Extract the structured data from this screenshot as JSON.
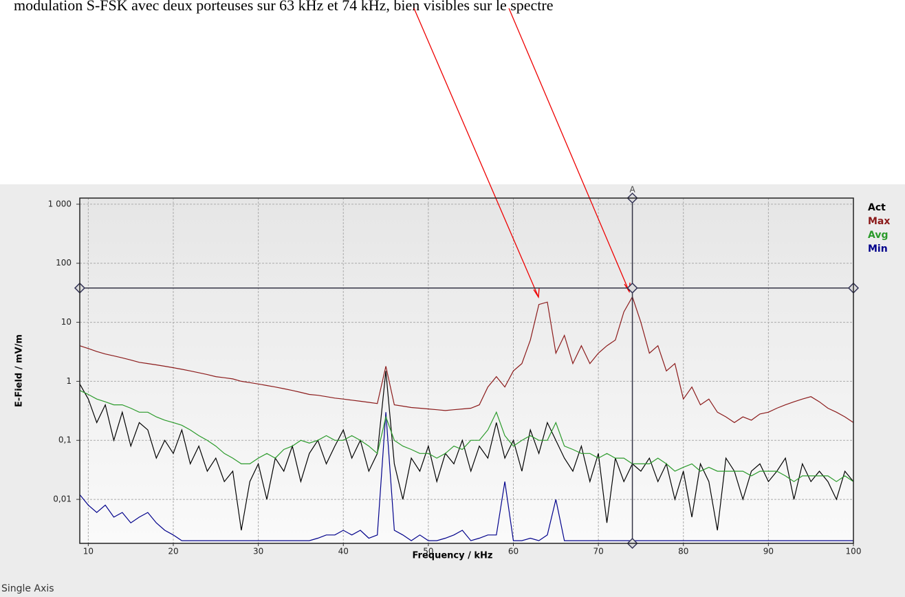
{
  "chart_data": {
    "type": "line",
    "annotation": "modulation S-FSK avec deux porteuses sur 63 kHz et 74 kHz, bien visibles sur le spectre",
    "xlabel": "Frequency / kHz",
    "ylabel": "E-Field / mV/m",
    "footer": "Single Axis",
    "log_y": true,
    "grid": true,
    "legend": "right",
    "xlim": [
      9,
      100
    ],
    "xticks": [
      10,
      20,
      30,
      40,
      50,
      60,
      70,
      80,
      90,
      100
    ],
    "ylim": [
      0.0018,
      1270
    ],
    "yticks": [
      {
        "value": 1000,
        "label": "1 000"
      },
      100,
      10,
      1,
      {
        "value": 0.1,
        "label": "0,1"
      },
      {
        "value": 0.01,
        "label": "0,01"
      }
    ],
    "cursor": {
      "label": "A",
      "x": 74,
      "y": 38
    },
    "x": [
      9,
      10,
      11,
      12,
      13,
      14,
      15,
      16,
      17,
      18,
      19,
      20,
      21,
      22,
      23,
      24,
      25,
      26,
      27,
      28,
      29,
      30,
      31,
      32,
      33,
      34,
      35,
      36,
      37,
      38,
      39,
      40,
      41,
      42,
      43,
      44,
      45,
      46,
      47,
      48,
      49,
      50,
      51,
      52,
      53,
      54,
      55,
      56,
      57,
      58,
      59,
      60,
      61,
      62,
      63,
      64,
      65,
      66,
      67,
      68,
      69,
      70,
      71,
      72,
      73,
      74,
      75,
      76,
      77,
      78,
      79,
      80,
      81,
      82,
      83,
      84,
      85,
      86,
      87,
      88,
      89,
      90,
      91,
      92,
      93,
      94,
      95,
      96,
      97,
      98,
      99,
      100
    ],
    "series": [
      {
        "name": "Act",
        "color": "#000000",
        "values": [
          0.9,
          0.5,
          0.2,
          0.4,
          0.1,
          0.3,
          0.08,
          0.2,
          0.15,
          0.05,
          0.1,
          0.06,
          0.15,
          0.04,
          0.08,
          0.03,
          0.05,
          0.02,
          0.03,
          0.003,
          0.02,
          0.04,
          0.01,
          0.05,
          0.03,
          0.08,
          0.02,
          0.06,
          0.1,
          0.04,
          0.08,
          0.15,
          0.05,
          0.1,
          0.03,
          0.06,
          1.5,
          0.04,
          0.01,
          0.05,
          0.03,
          0.08,
          0.02,
          0.06,
          0.04,
          0.1,
          0.03,
          0.08,
          0.05,
          0.2,
          0.05,
          0.1,
          0.03,
          0.15,
          0.06,
          0.2,
          0.1,
          0.05,
          0.03,
          0.08,
          0.02,
          0.06,
          0.004,
          0.05,
          0.02,
          0.04,
          0.03,
          0.05,
          0.02,
          0.04,
          0.01,
          0.03,
          0.005,
          0.04,
          0.02,
          0.003,
          0.05,
          0.03,
          0.01,
          0.03,
          0.04,
          0.02,
          0.03,
          0.05,
          0.01,
          0.04,
          0.02,
          0.03,
          0.02,
          0.01,
          0.03,
          0.02
        ]
      },
      {
        "name": "Max",
        "color": "#8b1a1a",
        "values": [
          4,
          3.6,
          3.2,
          2.9,
          2.7,
          2.5,
          2.3,
          2.1,
          2.0,
          1.9,
          1.8,
          1.7,
          1.6,
          1.5,
          1.4,
          1.3,
          1.2,
          1.15,
          1.1,
          1.0,
          0.95,
          0.9,
          0.85,
          0.8,
          0.75,
          0.7,
          0.65,
          0.6,
          0.58,
          0.55,
          0.52,
          0.5,
          0.48,
          0.46,
          0.44,
          0.42,
          1.8,
          0.4,
          0.38,
          0.36,
          0.35,
          0.34,
          0.33,
          0.32,
          0.33,
          0.34,
          0.35,
          0.4,
          0.8,
          1.2,
          0.8,
          1.5,
          2,
          5,
          20,
          22,
          3,
          6,
          2,
          4,
          2,
          3,
          4,
          5,
          15,
          27,
          10,
          3,
          4,
          1.5,
          2,
          0.5,
          0.8,
          0.4,
          0.5,
          0.3,
          0.25,
          0.2,
          0.25,
          0.22,
          0.28,
          0.3,
          0.35,
          0.4,
          0.45,
          0.5,
          0.55,
          0.45,
          0.35,
          0.3,
          0.25,
          0.2
        ]
      },
      {
        "name": "Avg",
        "color": "#2a9a2a",
        "values": [
          0.7,
          0.6,
          0.5,
          0.45,
          0.4,
          0.4,
          0.35,
          0.3,
          0.3,
          0.25,
          0.22,
          0.2,
          0.18,
          0.15,
          0.12,
          0.1,
          0.08,
          0.06,
          0.05,
          0.04,
          0.04,
          0.05,
          0.06,
          0.05,
          0.07,
          0.08,
          0.1,
          0.09,
          0.1,
          0.12,
          0.1,
          0.1,
          0.12,
          0.1,
          0.08,
          0.06,
          0.25,
          0.1,
          0.08,
          0.07,
          0.06,
          0.06,
          0.05,
          0.06,
          0.08,
          0.07,
          0.1,
          0.1,
          0.15,
          0.3,
          0.12,
          0.08,
          0.1,
          0.12,
          0.1,
          0.1,
          0.2,
          0.08,
          0.07,
          0.06,
          0.06,
          0.05,
          0.06,
          0.05,
          0.05,
          0.04,
          0.04,
          0.04,
          0.05,
          0.04,
          0.03,
          0.035,
          0.04,
          0.03,
          0.035,
          0.03,
          0.03,
          0.03,
          0.03,
          0.025,
          0.03,
          0.03,
          0.03,
          0.025,
          0.02,
          0.025,
          0.025,
          0.025,
          0.025,
          0.02,
          0.025,
          0.02
        ]
      },
      {
        "name": "Min",
        "color": "#00008b",
        "values": [
          0.012,
          0.008,
          0.006,
          0.008,
          0.005,
          0.006,
          0.004,
          0.005,
          0.006,
          0.004,
          0.003,
          0.0025,
          0.002,
          0.002,
          0.002,
          0.002,
          0.002,
          0.002,
          0.002,
          0.002,
          0.002,
          0.002,
          0.002,
          0.002,
          0.002,
          0.002,
          0.002,
          0.002,
          0.0022,
          0.0025,
          0.0025,
          0.003,
          0.0025,
          0.003,
          0.0022,
          0.0025,
          0.3,
          0.003,
          0.0025,
          0.002,
          0.0025,
          0.002,
          0.002,
          0.0022,
          0.0025,
          0.003,
          0.002,
          0.0022,
          0.0025,
          0.0025,
          0.02,
          0.002,
          0.002,
          0.0022,
          0.002,
          0.0025,
          0.01,
          0.002,
          0.002,
          0.002,
          0.002,
          0.002,
          0.002,
          0.002,
          0.002,
          0.002,
          0.002,
          0.002,
          0.002,
          0.002,
          0.002,
          0.002,
          0.002,
          0.002,
          0.002,
          0.002,
          0.002,
          0.002,
          0.002,
          0.002,
          0.002,
          0.002,
          0.002,
          0.002,
          0.002,
          0.002,
          0.002,
          0.002,
          0.002,
          0.002,
          0.002,
          0.002
        ]
      }
    ]
  }
}
